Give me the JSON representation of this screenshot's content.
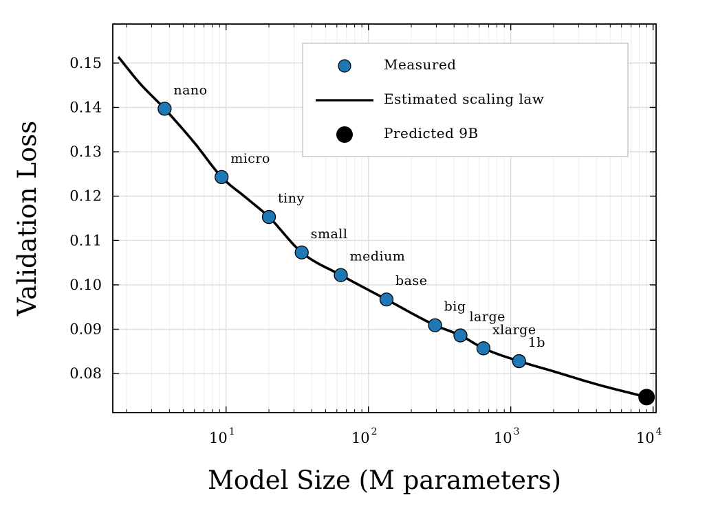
{
  "chart_data": {
    "type": "scatter",
    "xlabel": "Model Size (M parameters)",
    "ylabel": "Validation Loss",
    "xscale": "log",
    "xlim": [
      1.6,
      10500
    ],
    "ylim": [
      0.0712,
      0.1588
    ],
    "grid": true,
    "legend_position": "top-right",
    "x_ticks": [
      {
        "value": 10,
        "base": "10",
        "exp": "1"
      },
      {
        "value": 100,
        "base": "10",
        "exp": "2"
      },
      {
        "value": 1000,
        "base": "10",
        "exp": "3"
      },
      {
        "value": 10000,
        "base": "10",
        "exp": "4"
      }
    ],
    "y_ticks": [
      {
        "value": 0.08,
        "label": "0.08"
      },
      {
        "value": 0.09,
        "label": "0.09"
      },
      {
        "value": 0.1,
        "label": "0.10"
      },
      {
        "value": 0.11,
        "label": "0.11"
      },
      {
        "value": 0.12,
        "label": "0.12"
      },
      {
        "value": 0.13,
        "label": "0.13"
      },
      {
        "value": 0.14,
        "label": "0.14"
      },
      {
        "value": 0.15,
        "label": "0.15"
      }
    ],
    "series": [
      {
        "name": "Measured",
        "kind": "scatter",
        "color": "#1f77b4",
        "points": [
          {
            "label": "nano",
            "x": 3.7,
            "y": 0.1397
          },
          {
            "label": "micro",
            "x": 9.3,
            "y": 0.1243
          },
          {
            "label": "tiny",
            "x": 20,
            "y": 0.1153
          },
          {
            "label": "small",
            "x": 34,
            "y": 0.1073
          },
          {
            "label": "medium",
            "x": 64,
            "y": 0.1022
          },
          {
            "label": "base",
            "x": 134,
            "y": 0.0967
          },
          {
            "label": "big",
            "x": 294,
            "y": 0.0909
          },
          {
            "label": "large",
            "x": 443,
            "y": 0.0886
          },
          {
            "label": "xlarge",
            "x": 643,
            "y": 0.0857
          },
          {
            "label": "1b",
            "x": 1144,
            "y": 0.0828
          }
        ]
      },
      {
        "name": "Estimated scaling law",
        "kind": "line",
        "color": "#000000",
        "x_range": [
          1.75,
          9000
        ],
        "points": [
          {
            "x": 1.75,
            "y": 0.1514
          },
          {
            "x": 2.5,
            "y": 0.1453
          },
          {
            "x": 3.7,
            "y": 0.1397
          },
          {
            "x": 6,
            "y": 0.132
          },
          {
            "x": 9.3,
            "y": 0.1243
          },
          {
            "x": 14,
            "y": 0.1195
          },
          {
            "x": 20,
            "y": 0.1153
          },
          {
            "x": 34,
            "y": 0.1073
          },
          {
            "x": 64,
            "y": 0.1022
          },
          {
            "x": 134,
            "y": 0.0967
          },
          {
            "x": 294,
            "y": 0.0909
          },
          {
            "x": 443,
            "y": 0.0886
          },
          {
            "x": 643,
            "y": 0.0857
          },
          {
            "x": 1144,
            "y": 0.0828
          },
          {
            "x": 2000,
            "y": 0.0805
          },
          {
            "x": 4000,
            "y": 0.0776
          },
          {
            "x": 9000,
            "y": 0.0747
          }
        ]
      },
      {
        "name": "Predicted 9B",
        "kind": "scatter",
        "color": "#000000",
        "points": [
          {
            "label": "",
            "x": 9000,
            "y": 0.0747
          }
        ]
      }
    ]
  }
}
